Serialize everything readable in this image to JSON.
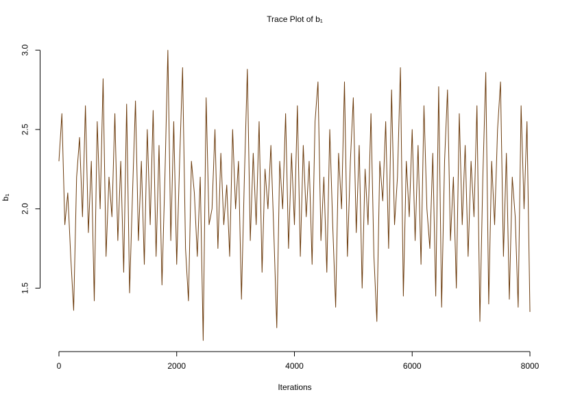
{
  "chart_data": {
    "type": "line",
    "title": "Trace Plot of b₁",
    "xlabel": "Iterations",
    "ylabel": "b₁",
    "color": "#6B3A0B",
    "xlim": [
      -320,
      8320
    ],
    "ylim": [
      1.1,
      3.07
    ],
    "xticks": [
      0,
      2000,
      4000,
      6000,
      8000
    ],
    "yticks": [
      1.5,
      {
        "value": 2.0,
        "label": "2.0"
      },
      2.5,
      {
        "value": 3.0,
        "label": "3.0"
      }
    ],
    "x": [
      0,
      50,
      100,
      150,
      200,
      250,
      300,
      350,
      400,
      450,
      500,
      550,
      600,
      650,
      700,
      750,
      800,
      850,
      900,
      950,
      1000,
      1050,
      1100,
      1150,
      1200,
      1250,
      1300,
      1350,
      1400,
      1450,
      1500,
      1550,
      1600,
      1650,
      1700,
      1750,
      1800,
      1850,
      1900,
      1950,
      2000,
      2050,
      2100,
      2150,
      2200,
      2250,
      2300,
      2350,
      2400,
      2450,
      2500,
      2550,
      2600,
      2650,
      2700,
      2750,
      2800,
      2850,
      2900,
      2950,
      3000,
      3050,
      3100,
      3150,
      3200,
      3250,
      3300,
      3350,
      3400,
      3450,
      3500,
      3550,
      3600,
      3650,
      3700,
      3750,
      3800,
      3850,
      3900,
      3950,
      4000,
      4050,
      4100,
      4150,
      4200,
      4250,
      4300,
      4350,
      4400,
      4450,
      4500,
      4550,
      4600,
      4650,
      4700,
      4750,
      4800,
      4850,
      4900,
      4950,
      5000,
      5050,
      5100,
      5150,
      5200,
      5250,
      5300,
      5350,
      5400,
      5450,
      5500,
      5550,
      5600,
      5650,
      5700,
      5750,
      5800,
      5850,
      5900,
      5950,
      6000,
      6050,
      6100,
      6150,
      6200,
      6250,
      6300,
      6350,
      6400,
      6450,
      6500,
      6550,
      6600,
      6650,
      6700,
      6750,
      6800,
      6850,
      6900,
      6950,
      7000,
      7050,
      7100,
      7150,
      7200,
      7250,
      7300,
      7350,
      7400,
      7450,
      7500,
      7550,
      7600,
      7650,
      7700,
      7750,
      7800,
      7850,
      7900,
      7950,
      8000
    ],
    "values": [
      2.3,
      2.6,
      1.9,
      2.1,
      1.7,
      1.36,
      2.2,
      2.45,
      1.95,
      2.65,
      1.85,
      2.3,
      1.42,
      2.55,
      2.0,
      2.82,
      1.7,
      2.2,
      1.95,
      2.6,
      1.8,
      2.3,
      1.6,
      2.66,
      1.47,
      2.1,
      2.68,
      1.8,
      2.3,
      1.65,
      2.5,
      1.9,
      2.62,
      1.7,
      2.4,
      1.52,
      2.2,
      3.0,
      1.8,
      2.55,
      1.65,
      2.3,
      2.89,
      1.75,
      1.42,
      2.3,
      2.1,
      1.7,
      2.2,
      1.17,
      2.7,
      1.9,
      2.0,
      2.5,
      1.75,
      2.35,
      1.9,
      2.15,
      1.7,
      2.5,
      2.0,
      2.3,
      1.43,
      2.2,
      2.88,
      1.8,
      2.35,
      1.9,
      2.55,
      1.6,
      2.25,
      2.0,
      2.4,
      1.85,
      1.25,
      2.3,
      2.0,
      2.6,
      1.75,
      2.35,
      1.9,
      2.65,
      1.7,
      2.4,
      1.95,
      2.3,
      1.65,
      2.55,
      2.8,
      1.8,
      2.2,
      1.6,
      2.5,
      1.9,
      1.38,
      2.35,
      2.0,
      2.8,
      1.7,
      2.3,
      2.7,
      1.85,
      2.4,
      1.5,
      2.25,
      1.9,
      2.6,
      1.7,
      1.29,
      2.3,
      2.05,
      2.55,
      1.75,
      2.75,
      1.9,
      2.2,
      2.89,
      1.45,
      2.3,
      1.95,
      2.5,
      1.8,
      2.4,
      1.65,
      2.65,
      2.0,
      1.75,
      2.35,
      1.45,
      2.77,
      1.38,
      2.3,
      2.75,
      1.8,
      2.2,
      1.5,
      2.6,
      1.9,
      2.4,
      1.7,
      2.3,
      1.95,
      2.65,
      1.29,
      2.2,
      2.86,
      1.4,
      2.3,
      1.9,
      2.5,
      2.8,
      1.7,
      2.35,
      1.43,
      2.2,
      1.95,
      1.38,
      2.65,
      2.0,
      2.55,
      1.35
    ]
  }
}
